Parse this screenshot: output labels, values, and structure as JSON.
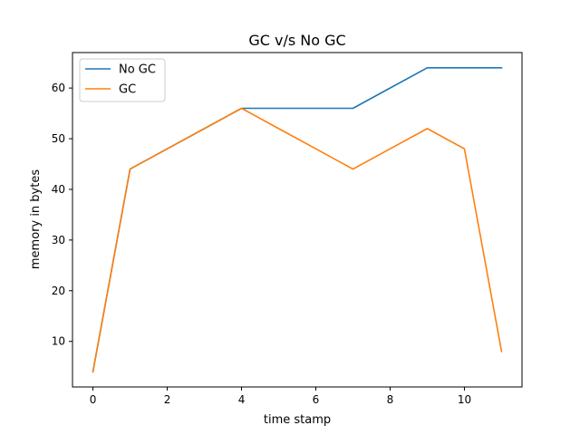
{
  "chart_data": {
    "type": "line",
    "title": "GC v/s No GC",
    "xlabel": "time stamp",
    "ylabel": "memory in bytes",
    "x": [
      0,
      1,
      2,
      3,
      4,
      5,
      6,
      7,
      8,
      9,
      10,
      11
    ],
    "series": [
      {
        "name": "No GC",
        "color": "#1f77b4",
        "values": [
          4,
          44,
          48,
          52,
          56,
          56,
          56,
          56,
          60,
          64,
          64,
          64
        ]
      },
      {
        "name": "GC",
        "color": "#ff7f0e",
        "values": [
          4,
          44,
          48,
          52,
          56,
          52,
          48,
          44,
          48,
          52,
          48,
          8
        ]
      }
    ],
    "xlim": [
      -0.55,
      11.55
    ],
    "ylim": [
      1,
      67
    ],
    "xticks": [
      0,
      2,
      4,
      6,
      8,
      10
    ],
    "yticks": [
      10,
      20,
      30,
      40,
      50,
      60
    ],
    "grid": false,
    "legend": "top-left"
  }
}
